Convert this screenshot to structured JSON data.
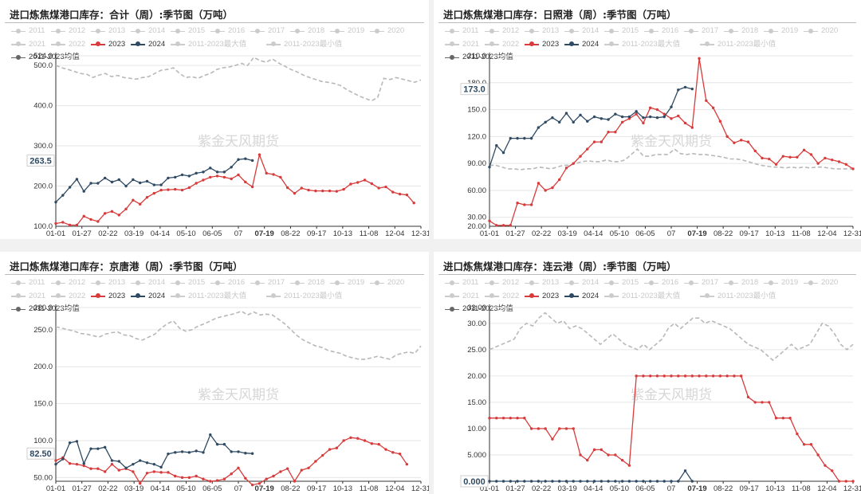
{
  "legend": {
    "items": [
      {
        "label": "2011",
        "color": "#cccccc",
        "active": false
      },
      {
        "label": "2012",
        "color": "#cccccc",
        "active": false
      },
      {
        "label": "2013",
        "color": "#cccccc",
        "active": false
      },
      {
        "label": "2014",
        "color": "#cccccc",
        "active": false
      },
      {
        "label": "2015",
        "color": "#cccccc",
        "active": false
      },
      {
        "label": "2016",
        "color": "#cccccc",
        "active": false
      },
      {
        "label": "2017",
        "color": "#cccccc",
        "active": false
      },
      {
        "label": "2018",
        "color": "#cccccc",
        "active": false
      },
      {
        "label": "2019",
        "color": "#cccccc",
        "active": false
      },
      {
        "label": "2020",
        "color": "#cccccc",
        "active": false
      },
      {
        "label": "2021",
        "color": "#cccccc",
        "active": false
      },
      {
        "label": "2022",
        "color": "#cccccc",
        "active": false
      },
      {
        "label": "2023",
        "color": "#d83b3b",
        "active": true
      },
      {
        "label": "2024",
        "color": "#2f4a63",
        "active": true
      },
      {
        "label": "2011-2023最大值",
        "color": "#cccccc",
        "active": false
      },
      {
        "label": "2011-2023最小值",
        "color": "#cccccc",
        "active": false
      },
      {
        "label": "2011-2023均值",
        "color": "#666666",
        "active": true
      }
    ]
  },
  "colors": {
    "s2023": "#d83b3b",
    "s2024": "#2f4a63",
    "avg": "#b8b8b8"
  },
  "watermark": "紫金天风期货",
  "x_ticks": [
    "01-01",
    "01-27",
    "02-22",
    "03-19",
    "04-14",
    "05-10",
    "06-05",
    "07",
    "07-19",
    "08-22",
    "09-17",
    "10-13",
    "11-08",
    "12-04",
    "12-31"
  ],
  "charts": [
    {
      "title": "进口炼焦煤港口库存：合计（周）:季节图（万吨）",
      "current_label": "263.5",
      "chart_data": {
        "type": "line",
        "ylim": [
          100,
          524
        ],
        "yticks": [
          "100.0",
          "200.0",
          "300.0",
          "400.0",
          "500.0",
          "524.0"
        ],
        "ytick_values": [
          100,
          200,
          300,
          400,
          500,
          524
        ],
        "series": [
          {
            "name": "2011-2023均值",
            "values": [
              500,
              494,
              490,
              485,
              480,
              478,
              470,
              476,
              480,
              472,
              475,
              470,
              468,
              466,
              470,
              472,
              480,
              488,
              490,
              494,
              480,
              470,
              472,
              468,
              475,
              480,
              490,
              494,
              496,
              500,
              505,
              500,
              520,
              512,
              508,
              516,
              506,
              498,
              490,
              484,
              476,
              470,
              465,
              460,
              458,
              455,
              450,
              440,
              432,
              424,
              418,
              412,
              420,
              468,
              465,
              470,
              466,
              462,
              458,
              464
            ]
          },
          {
            "name": "2023",
            "values": [
              107,
              110,
              103,
              103,
              125,
              117,
              112,
              132,
              137,
              128,
              143,
              165,
              155,
              172,
              182,
              190,
              191,
              192,
              190,
              196,
              207,
              215,
              222,
              225,
              222,
              218,
              228,
              210,
              198,
              278,
              232,
              229,
              222,
              196,
              182,
              195,
              190,
              188,
              188,
              188,
              187,
              192,
              205,
              209,
              215,
              206,
              195,
              198,
              185,
              180,
              178,
              158
            ]
          },
          {
            "name": "2024",
            "values": [
              160,
              177,
              197,
              217,
              187,
              207,
              207,
              220,
              210,
              216,
              200,
              216,
              208,
              212,
              203,
              203,
              220,
              222,
              228,
              225,
              232,
              235,
              245,
              235,
              235,
              247,
              266,
              268,
              263.5
            ]
          }
        ]
      }
    },
    {
      "title": "进口炼焦煤港口库存：日照港（周）:季节图（万吨）",
      "current_label": "173.0",
      "chart_data": {
        "type": "line",
        "ylim": [
          20,
          210
        ],
        "yticks": [
          "20.00",
          "30.00",
          "60.00",
          "90.00",
          "120.0",
          "150.0",
          "180.0",
          "210.0"
        ],
        "ytick_values": [
          20,
          30,
          60,
          90,
          120,
          150,
          180,
          210
        ],
        "series": [
          {
            "name": "2011-2023均值",
            "values": [
              88,
              88,
              86,
              84,
              84,
              83,
              84,
              84,
              86,
              85,
              84,
              86,
              88,
              88,
              90,
              92,
              93,
              92,
              92,
              94,
              92,
              92,
              94,
              100,
              106,
              98,
              98,
              100,
              100,
              100,
              106,
              101,
              100,
              101,
              100,
              100,
              99,
              98,
              97,
              95,
              95,
              94,
              92,
              90,
              88,
              87,
              86,
              86,
              85,
              86,
              85,
              86,
              85,
              86,
              86,
              85,
              84,
              84,
              84,
              84
            ]
          },
          {
            "name": "2023",
            "values": [
              26,
              21,
              21,
              21,
              46,
              44,
              44,
              68,
              60,
              63,
              72,
              85,
              90,
              98,
              106,
              114,
              114,
              125,
              125,
              136,
              140,
              145,
              135,
              152,
              150,
              145,
              140,
              143,
              135,
              130,
              207,
              160,
              152,
              137,
              120,
              113,
              116,
              114,
              104,
              96,
              95,
              89,
              98,
              97,
              97,
              105,
              100,
              90,
              96,
              94,
              92,
              89,
              84
            ]
          },
          {
            "name": "2024",
            "values": [
              86,
              110,
              102,
              118,
              118,
              118,
              118,
              130,
              136,
              141,
              136,
              146,
              136,
              144,
              137,
              142,
              140,
              139,
              145,
              142,
              142,
              148,
              141,
              142,
              141,
              142,
              153,
              172,
              175,
              173
            ]
          }
        ]
      }
    },
    {
      "title": "进口炼焦煤港口库存：京唐港（周）:季节图（万吨）",
      "current_label": "82.50",
      "chart_data": {
        "type": "line",
        "ylim": [
          45,
          280
        ],
        "yticks": [
          "50.00",
          "100.0",
          "150.0",
          "200.0",
          "250.0",
          "280.0"
        ],
        "ytick_values": [
          50,
          100,
          150,
          200,
          250,
          280
        ],
        "series": [
          {
            "name": "2011-2023均值",
            "values": [
              254,
              252,
              250,
              248,
              245,
              244,
              242,
              240,
              244,
              246,
              247,
              243,
              242,
              238,
              236,
              240,
              244,
              252,
              258,
              262,
              252,
              248,
              250,
              255,
              258,
              262,
              266,
              268,
              270,
              272,
              275,
              270,
              274,
              270,
              271,
              270,
              264,
              258,
              250,
              242,
              236,
              232,
              228,
              226,
              222,
              220,
              218,
              214,
              212,
              210,
              210,
              212,
              214,
              212,
              210,
              216,
              218,
              220,
              218,
              228
            ]
          },
          {
            "name": "2023",
            "values": [
              73,
              77,
              69,
              68,
              66,
              62,
              62,
              58,
              68,
              60,
              62,
              58,
              42,
              56,
              58,
              57,
              57,
              52,
              50,
              50,
              52,
              48,
              45,
              46,
              48,
              55,
              63,
              49,
              40,
              42,
              48,
              52,
              58,
              62,
              45,
              60,
              63,
              72,
              80,
              88,
              90,
              100,
              104,
              103,
              100,
              96,
              95,
              88,
              84,
              82,
              68
            ]
          },
          {
            "name": "2024",
            "values": [
              68,
              75,
              97,
              99,
              69,
              89,
              89,
              91,
              73,
              72,
              63,
              68,
              73,
              70,
              68,
              64,
              82,
              84,
              85,
              84,
              86,
              84,
              108,
              95,
              95,
              85,
              85,
              83,
              82.5
            ]
          }
        ]
      }
    },
    {
      "title": "进口炼焦煤港口库存：连云港（周）:季节图（万吨）",
      "current_label": "0.000",
      "chart_data": {
        "type": "line",
        "ylim": [
          0,
          33
        ],
        "yticks": [
          "0.000",
          "5.000",
          "10.00",
          "15.00",
          "20.00",
          "25.00",
          "30.00",
          "33.00"
        ],
        "ytick_values": [
          0,
          5,
          10,
          15,
          20,
          25,
          30,
          33
        ],
        "series": [
          {
            "name": "2011-2023均值",
            "values": [
              25,
              25.5,
              26,
              26.5,
              27,
              29,
              30,
              29.5,
              31,
              32,
              31,
              30,
              30.5,
              29,
              29.5,
              29,
              28,
              27,
              26,
              27,
              28,
              27,
              26,
              25.5,
              25,
              26,
              25,
              26,
              27,
              29,
              30,
              29,
              30,
              31,
              31,
              30,
              30.5,
              30,
              29.5,
              29,
              28,
              27,
              26,
              25.5,
              25,
              24,
              23,
              24,
              25,
              26,
              25,
              25.5,
              26,
              28,
              30,
              29.5,
              28,
              26,
              25,
              26
            ]
          },
          {
            "name": "2023",
            "values": [
              12,
              12,
              12,
              12,
              12,
              12,
              10,
              10,
              10,
              8,
              10,
              10,
              10,
              5,
              4,
              6,
              6,
              5,
              5,
              4,
              3,
              20,
              20,
              20,
              20,
              20,
              20,
              20,
              20,
              20,
              20,
              20,
              20,
              20,
              20,
              20,
              20,
              16,
              15,
              15,
              15,
              12,
              12,
              12,
              9,
              7,
              7,
              5,
              3,
              2,
              0,
              0,
              0
            ]
          },
          {
            "name": "2024",
            "values": [
              0,
              0,
              0,
              0,
              0,
              0,
              0,
              0,
              0,
              0,
              0,
              0,
              0,
              0,
              0,
              0,
              0,
              0,
              0,
              0,
              0,
              0,
              0,
              0,
              0,
              0,
              0,
              0,
              2,
              0
            ]
          }
        ]
      }
    }
  ]
}
